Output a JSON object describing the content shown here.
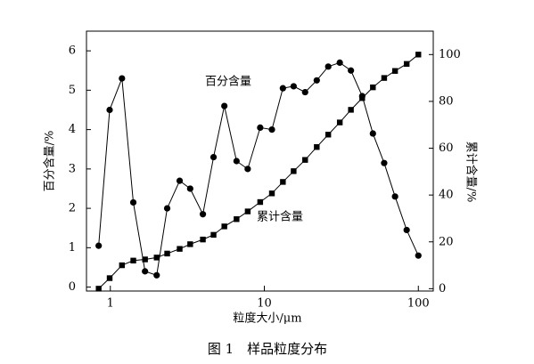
{
  "chart_data": {
    "type": "line",
    "x_label": "粒度大小/μm",
    "y_label": "百分含量/%",
    "y2_label": "累计含量/%",
    "caption": "图 1　样品粒度分布",
    "x_scale": "log",
    "xlim": [
      0.7,
      125
    ],
    "xticks": [
      1,
      10,
      100
    ],
    "ylim": [
      -0.1,
      6.5
    ],
    "yticks": [
      0,
      1,
      2,
      3,
      4,
      5,
      6
    ],
    "y2lim": [
      -1,
      110
    ],
    "y2ticks": [
      0,
      20,
      40,
      60,
      80,
      100
    ],
    "x": [
      0.84,
      0.99,
      1.19,
      1.41,
      1.68,
      2.0,
      2.34,
      2.82,
      3.3,
      3.99,
      4.68,
      5.5,
      6.6,
      7.8,
      9.4,
      11.2,
      13.2,
      15.5,
      18.4,
      21.9,
      26.0,
      30.9,
      36.5,
      43.2,
      50.7,
      60.0,
      70.6,
      84,
      100
    ],
    "series": [
      {
        "name": "百分含量",
        "color": "#000000",
        "marker": "circle",
        "values": [
          1.05,
          4.5,
          5.3,
          2.15,
          0.4,
          0.3,
          2.0,
          2.7,
          2.5,
          1.85,
          3.3,
          4.6,
          3.2,
          3.0,
          4.05,
          4.0,
          5.05,
          5.1,
          4.95,
          5.25,
          5.6,
          5.7,
          5.5,
          4.85,
          3.9,
          3.15,
          2.3,
          1.45,
          0.8
        ]
      },
      {
        "name": "累计含量",
        "color": "#000000",
        "marker": "square",
        "axis": "y2",
        "values": [
          0,
          4.5,
          10,
          12,
          12.5,
          13.3,
          15,
          17,
          19,
          21,
          23,
          26.6,
          29.7,
          33,
          37,
          40.7,
          45.6,
          50.2,
          55,
          60.5,
          65.8,
          71,
          76.4,
          81.4,
          86,
          90,
          93,
          96,
          100
        ]
      }
    ]
  }
}
